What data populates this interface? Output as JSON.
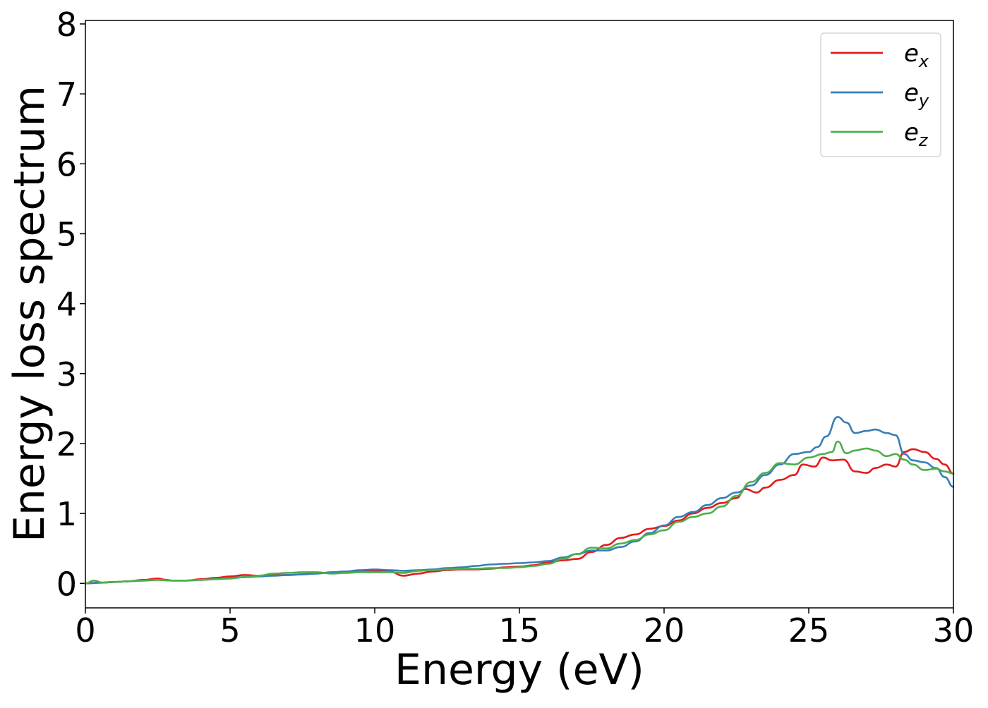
{
  "chart_data": {
    "type": "line",
    "title": "",
    "xlabel": "Energy (eV)",
    "ylabel": "Energy loss spectrum",
    "xlim": [
      0,
      30
    ],
    "ylim": [
      -0.35,
      8.05
    ],
    "xticks": [
      0,
      5,
      10,
      15,
      20,
      25,
      30
    ],
    "yticks": [
      0,
      1,
      2,
      3,
      4,
      5,
      6,
      7,
      8
    ],
    "grid": false,
    "legend_position": "top-right",
    "series": [
      {
        "name": "e_x",
        "base": "e",
        "sub": "x",
        "color": "#e41a1c",
        "points": [
          [
            0,
            0
          ],
          [
            0.5,
            0.01
          ],
          [
            1,
            0.02
          ],
          [
            1.5,
            0.03
          ],
          [
            2,
            0.05
          ],
          [
            2.5,
            0.07
          ],
          [
            2.8,
            0.05
          ],
          [
            3,
            0.04
          ],
          [
            3.5,
            0.04
          ],
          [
            4,
            0.06
          ],
          [
            4.5,
            0.08
          ],
          [
            5,
            0.1
          ],
          [
            5.5,
            0.12
          ],
          [
            6,
            0.11
          ],
          [
            6.5,
            0.12
          ],
          [
            7,
            0.12
          ],
          [
            7.5,
            0.13
          ],
          [
            8,
            0.15
          ],
          [
            8.5,
            0.15
          ],
          [
            9,
            0.16
          ],
          [
            9.5,
            0.17
          ],
          [
            10,
            0.18
          ],
          [
            10.5,
            0.17
          ],
          [
            11,
            0.11
          ],
          [
            11.5,
            0.14
          ],
          [
            12,
            0.17
          ],
          [
            12.5,
            0.19
          ],
          [
            13,
            0.2
          ],
          [
            13.5,
            0.2
          ],
          [
            14,
            0.21
          ],
          [
            14.5,
            0.23
          ],
          [
            15,
            0.24
          ],
          [
            15.5,
            0.26
          ],
          [
            16,
            0.3
          ],
          [
            16.5,
            0.33
          ],
          [
            17,
            0.35
          ],
          [
            17.5,
            0.45
          ],
          [
            18,
            0.55
          ],
          [
            18.5,
            0.65
          ],
          [
            19,
            0.7
          ],
          [
            19.5,
            0.78
          ],
          [
            20,
            0.82
          ],
          [
            20.5,
            0.9
          ],
          [
            21,
            1.0
          ],
          [
            21.5,
            1.08
          ],
          [
            22,
            1.15
          ],
          [
            22.5,
            1.22
          ],
          [
            22.8,
            1.35
          ],
          [
            23.2,
            1.3
          ],
          [
            23.5,
            1.37
          ],
          [
            24,
            1.48
          ],
          [
            24.5,
            1.55
          ],
          [
            24.8,
            1.7
          ],
          [
            25.2,
            1.67
          ],
          [
            25.5,
            1.8
          ],
          [
            25.8,
            1.76
          ],
          [
            26.2,
            1.77
          ],
          [
            26.6,
            1.6
          ],
          [
            27,
            1.58
          ],
          [
            27.3,
            1.65
          ],
          [
            27.7,
            1.7
          ],
          [
            28,
            1.67
          ],
          [
            28.3,
            1.88
          ],
          [
            28.6,
            1.92
          ],
          [
            29,
            1.88
          ],
          [
            29.4,
            1.78
          ],
          [
            29.7,
            1.7
          ],
          [
            30,
            1.57
          ]
        ]
      },
      {
        "name": "e_y",
        "base": "e",
        "sub": "y",
        "color": "#377eb8",
        "points": [
          [
            0,
            0
          ],
          [
            0.5,
            0.01
          ],
          [
            1,
            0.02
          ],
          [
            1.5,
            0.03
          ],
          [
            2,
            0.04
          ],
          [
            2.5,
            0.05
          ],
          [
            3,
            0.04
          ],
          [
            3.5,
            0.04
          ],
          [
            4,
            0.05
          ],
          [
            4.5,
            0.06
          ],
          [
            5,
            0.08
          ],
          [
            5.5,
            0.09
          ],
          [
            6,
            0.1
          ],
          [
            6.5,
            0.11
          ],
          [
            7,
            0.12
          ],
          [
            7.5,
            0.13
          ],
          [
            8,
            0.14
          ],
          [
            8.5,
            0.16
          ],
          [
            9,
            0.17
          ],
          [
            9.5,
            0.19
          ],
          [
            10,
            0.2
          ],
          [
            10.5,
            0.19
          ],
          [
            11,
            0.18
          ],
          [
            11.5,
            0.19
          ],
          [
            12,
            0.2
          ],
          [
            12.5,
            0.22
          ],
          [
            13,
            0.23
          ],
          [
            13.5,
            0.25
          ],
          [
            14,
            0.27
          ],
          [
            14.5,
            0.28
          ],
          [
            15,
            0.29
          ],
          [
            15.5,
            0.3
          ],
          [
            16,
            0.32
          ],
          [
            16.5,
            0.37
          ],
          [
            17,
            0.42
          ],
          [
            17.5,
            0.47
          ],
          [
            18,
            0.47
          ],
          [
            18.5,
            0.52
          ],
          [
            19,
            0.6
          ],
          [
            19.5,
            0.72
          ],
          [
            20,
            0.83
          ],
          [
            20.5,
            0.95
          ],
          [
            21,
            1.02
          ],
          [
            21.5,
            1.12
          ],
          [
            22,
            1.22
          ],
          [
            22.5,
            1.3
          ],
          [
            23,
            1.4
          ],
          [
            23.5,
            1.55
          ],
          [
            24,
            1.7
          ],
          [
            24.5,
            1.85
          ],
          [
            25,
            1.88
          ],
          [
            25.3,
            1.95
          ],
          [
            25.6,
            2.1
          ],
          [
            26,
            2.38
          ],
          [
            26.3,
            2.3
          ],
          [
            26.6,
            2.15
          ],
          [
            27,
            2.18
          ],
          [
            27.3,
            2.2
          ],
          [
            27.7,
            2.15
          ],
          [
            28,
            2.12
          ],
          [
            28.3,
            1.85
          ],
          [
            28.6,
            1.76
          ],
          [
            29,
            1.73
          ],
          [
            29.4,
            1.65
          ],
          [
            29.7,
            1.52
          ],
          [
            30,
            1.38
          ]
        ]
      },
      {
        "name": "e_z",
        "base": "e",
        "sub": "z",
        "color": "#4daf4a",
        "points": [
          [
            0,
            0
          ],
          [
            0.3,
            0.04
          ],
          [
            0.6,
            0.01
          ],
          [
            1,
            0.02
          ],
          [
            1.5,
            0.03
          ],
          [
            2,
            0.04
          ],
          [
            2.5,
            0.05
          ],
          [
            3,
            0.04
          ],
          [
            3.5,
            0.04
          ],
          [
            4,
            0.05
          ],
          [
            4.5,
            0.06
          ],
          [
            5,
            0.07
          ],
          [
            5.5,
            0.09
          ],
          [
            6,
            0.11
          ],
          [
            6.5,
            0.14
          ],
          [
            7,
            0.15
          ],
          [
            7.5,
            0.16
          ],
          [
            8,
            0.16
          ],
          [
            8.5,
            0.14
          ],
          [
            9,
            0.15
          ],
          [
            9.5,
            0.16
          ],
          [
            10,
            0.16
          ],
          [
            10.5,
            0.16
          ],
          [
            11,
            0.15
          ],
          [
            11.5,
            0.18
          ],
          [
            12,
            0.19
          ],
          [
            12.5,
            0.2
          ],
          [
            13,
            0.21
          ],
          [
            13.5,
            0.21
          ],
          [
            14,
            0.22
          ],
          [
            14.5,
            0.22
          ],
          [
            15,
            0.23
          ],
          [
            15.5,
            0.25
          ],
          [
            16,
            0.28
          ],
          [
            16.5,
            0.35
          ],
          [
            17,
            0.42
          ],
          [
            17.5,
            0.51
          ],
          [
            18,
            0.5
          ],
          [
            18.5,
            0.57
          ],
          [
            19,
            0.62
          ],
          [
            19.5,
            0.7
          ],
          [
            20,
            0.76
          ],
          [
            20.5,
            0.88
          ],
          [
            21,
            0.95
          ],
          [
            21.5,
            1.0
          ],
          [
            22,
            1.1
          ],
          [
            22.5,
            1.25
          ],
          [
            23,
            1.45
          ],
          [
            23.5,
            1.58
          ],
          [
            24,
            1.72
          ],
          [
            24.5,
            1.7
          ],
          [
            25,
            1.8
          ],
          [
            25.5,
            1.85
          ],
          [
            25.8,
            1.88
          ],
          [
            26,
            2.03
          ],
          [
            26.3,
            1.86
          ],
          [
            26.6,
            1.9
          ],
          [
            27,
            1.93
          ],
          [
            27.3,
            1.9
          ],
          [
            27.7,
            1.82
          ],
          [
            28,
            1.85
          ],
          [
            28.3,
            1.77
          ],
          [
            28.6,
            1.7
          ],
          [
            29,
            1.62
          ],
          [
            29.4,
            1.64
          ],
          [
            29.7,
            1.6
          ],
          [
            30,
            1.57
          ]
        ]
      }
    ]
  }
}
